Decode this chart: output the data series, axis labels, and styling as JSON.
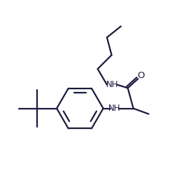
{
  "background": "#ffffff",
  "line_color": "#1a1a3e",
  "line_width": 1.6,
  "font_size": 8.5,
  "figsize": [
    2.66,
    2.54
  ],
  "dpi": 100,
  "xlim": [
    0,
    10
  ],
  "ylim": [
    0,
    9.55
  ]
}
